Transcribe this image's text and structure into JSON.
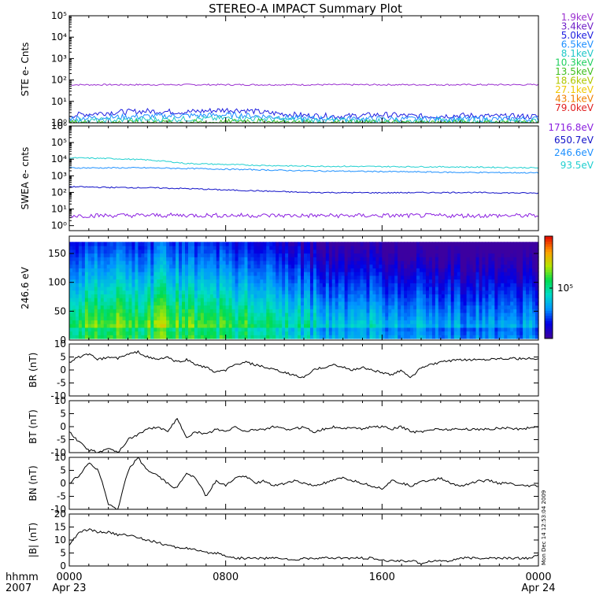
{
  "title": "STEREO-A IMPACT Summary Plot",
  "time_axis": {
    "corner_top": "hhmm",
    "corner_bottom": "2007",
    "ticks": [
      {
        "hhmm": "0000",
        "hours": 0,
        "date": "Apr 23"
      },
      {
        "hhmm": "0800",
        "hours": 8,
        "date": ""
      },
      {
        "hhmm": "1600",
        "hours": 16,
        "date": ""
      },
      {
        "hhmm": "0000",
        "hours": 24,
        "date": "Apr 24"
      }
    ]
  },
  "ste_legend": [
    {
      "label": "1.9keV",
      "color": "#9b30d0"
    },
    {
      "label": "3.4keV",
      "color": "#7020c8"
    },
    {
      "label": "5.0keV",
      "color": "#2020e0"
    },
    {
      "label": "6.5keV",
      "color": "#1e90ff"
    },
    {
      "label": "8.1keV",
      "color": "#20c8c8"
    },
    {
      "label": "10.3keV",
      "color": "#20d060"
    },
    {
      "label": "13.5keV",
      "color": "#40c020"
    },
    {
      "label": "18.6keV",
      "color": "#b0c800"
    },
    {
      "label": "27.1keV",
      "color": "#f0c800"
    },
    {
      "label": "43.1keV",
      "color": "#f08000"
    },
    {
      "label": "79.0keV",
      "color": "#e02020"
    }
  ],
  "swea_legend": [
    {
      "label": "1716.8eV",
      "color": "#8b20e0"
    },
    {
      "label": "650.7eV",
      "color": "#1010c8"
    },
    {
      "label": "246.6eV",
      "color": "#1e90ff"
    },
    {
      "label": "93.5eV",
      "color": "#20d0d0"
    }
  ],
  "colorbar": {
    "tick_label": "10⁵",
    "tick_fraction": 0.5
  },
  "chart_data": [
    {
      "type": "line",
      "ylabel": "STE e- Cnts",
      "yscale": "log",
      "ylim": [
        1,
        100000
      ],
      "yticks": [
        "10⁰",
        "10¹",
        "10²",
        "10³",
        "10⁴",
        "10⁵"
      ],
      "series": [
        {
          "color": "#9b30d0",
          "x": [
            0,
            4,
            8,
            12,
            16,
            20,
            24
          ],
          "y": [
            60,
            60,
            60,
            60,
            60,
            60,
            60
          ]
        },
        {
          "color": "#2020e0",
          "x": [
            0,
            2,
            4,
            6,
            8,
            9,
            10,
            12,
            14,
            16,
            18,
            20,
            22,
            24
          ],
          "y": [
            2.2,
            3,
            3.5,
            3.2,
            4,
            3.8,
            3,
            2.2,
            2,
            2.4,
            2,
            2.2,
            2,
            2
          ]
        },
        {
          "color": "#1e90ff",
          "x": [
            0,
            4,
            8,
            9,
            12,
            16,
            20,
            24
          ],
          "y": [
            1.6,
            2,
            2.3,
            2.2,
            1.6,
            1.5,
            1.5,
            1.5
          ]
        },
        {
          "color": "#20c8c8",
          "x": [
            0,
            4,
            8,
            9,
            12,
            16,
            20,
            24
          ],
          "y": [
            1.2,
            1.4,
            1.6,
            1.6,
            1.3,
            1.2,
            1.2,
            1.2
          ]
        },
        {
          "color": "#40c020",
          "x": [
            0,
            8,
            9,
            10,
            12,
            24
          ],
          "y": [
            1,
            1.05,
            1.3,
            1.1,
            1,
            1
          ]
        }
      ]
    },
    {
      "type": "line",
      "ylabel": "SWEA e- cnts",
      "yscale": "log",
      "ylim": [
        0.5,
        1000000
      ],
      "yticks": [
        "10⁰",
        "10¹",
        "10²",
        "10³",
        "10⁴",
        "10⁵",
        "10⁶"
      ],
      "series": [
        {
          "color": "#20d0d0",
          "x": [
            0,
            2,
            4,
            6,
            8,
            10,
            12,
            16,
            20,
            24
          ],
          "y": [
            12000,
            11000,
            9000,
            5500,
            4800,
            4200,
            3800,
            3600,
            3400,
            3000
          ]
        },
        {
          "color": "#1e90ff",
          "x": [
            0,
            4,
            8,
            12,
            16,
            20,
            24
          ],
          "y": [
            3000,
            3000,
            2500,
            2000,
            1800,
            1600,
            1500
          ]
        },
        {
          "color": "#1010c8",
          "x": [
            0,
            2,
            4,
            6,
            8,
            10,
            12,
            16,
            20,
            24
          ],
          "y": [
            220,
            200,
            190,
            170,
            140,
            120,
            100,
            95,
            100,
            90
          ]
        },
        {
          "color": "#8b20e0",
          "x": [
            0,
            6,
            12,
            18,
            24
          ],
          "y": [
            4,
            4.2,
            4,
            4,
            4
          ]
        }
      ]
    },
    {
      "type": "heatmap",
      "ylabel": "246.6 eV",
      "ylim": [
        0,
        180
      ],
      "yticks": [
        0,
        50,
        100,
        150
      ],
      "ytick_labels": [
        "0",
        "50",
        "100",
        "150"
      ],
      "z_fraction_by_hour": [
        0.3,
        0.45,
        0.5,
        0.48,
        0.45,
        0.48,
        0.45,
        0.44,
        0.4,
        0.42,
        0.38,
        0.35,
        0.3,
        0.22,
        0.2,
        0.22,
        0.2,
        0.18,
        0.2,
        0.16,
        0.15,
        0.14,
        0.13,
        0.14,
        0.15
      ],
      "pitch_top": 170
    },
    {
      "type": "line",
      "ylabel": "BR (nT)",
      "ylim": [
        -10,
        10
      ],
      "yticks": [
        10,
        5,
        0,
        -5,
        -10
      ],
      "ytick_labels": [
        "10",
        "5",
        "0",
        "-5",
        "-10"
      ],
      "series": [
        {
          "color": "#000000",
          "x": [
            0,
            0.5,
            1,
            1.5,
            2,
            2.5,
            3,
            3.5,
            4,
            4.5,
            5,
            5.5,
            6,
            6.5,
            7,
            7.5,
            8,
            8.5,
            9,
            9.5,
            10,
            10.5,
            11,
            11.5,
            12,
            12.5,
            13,
            13.5,
            14,
            14.5,
            15,
            15.5,
            16,
            16.5,
            17,
            17.5,
            18,
            18.5,
            19,
            19.5,
            20,
            20.5,
            21,
            21.5,
            22,
            22.5,
            23,
            23.5,
            24
          ],
          "y": [
            3,
            5,
            6,
            4,
            5,
            4.5,
            6,
            7,
            5,
            4,
            5,
            3,
            4,
            2,
            1,
            -1,
            0,
            2,
            3,
            2,
            1,
            0,
            -1,
            -2,
            -3,
            0,
            1,
            2,
            1,
            0,
            1,
            0,
            -1,
            -2,
            0,
            -3,
            1,
            2,
            3,
            3.5,
            3.8,
            4,
            4,
            4.2,
            4.5,
            4.5,
            4.3,
            4.4,
            4
          ]
        }
      ]
    },
    {
      "type": "line",
      "ylabel": "BT (nT)",
      "ylim": [
        -10,
        10
      ],
      "yticks": [
        10,
        5,
        0,
        -5,
        -10
      ],
      "ytick_labels": [
        "10",
        "5",
        "0",
        "-5",
        "-10"
      ],
      "series": [
        {
          "color": "#000000",
          "x": [
            0,
            0.5,
            1,
            1.5,
            2,
            2.5,
            3,
            3.5,
            4,
            4.5,
            5,
            5.5,
            6,
            6.5,
            7,
            7.5,
            8,
            8.5,
            9,
            9.5,
            10,
            10.5,
            11,
            11.5,
            12,
            12.5,
            13,
            13.5,
            14,
            14.5,
            15,
            15.5,
            16,
            16.5,
            17,
            17.5,
            18,
            18.5,
            19,
            19.5,
            20,
            20.5,
            21,
            21.5,
            22,
            22.5,
            23,
            23.5,
            24
          ],
          "y": [
            -2,
            -6,
            -9,
            -10,
            -8,
            -10,
            -5,
            -3,
            -1,
            0,
            -2,
            3,
            -4,
            -2,
            -3,
            -1,
            -2,
            0,
            -2,
            -1,
            -1,
            0,
            -1,
            -1,
            0,
            -2,
            -1,
            0,
            -1,
            0,
            -1,
            0,
            0,
            -1,
            0,
            -2,
            -2,
            -1,
            -1,
            -1,
            -1,
            -1,
            -1,
            -1,
            -0.5,
            -0.5,
            -1,
            -0.5,
            0
          ]
        }
      ]
    },
    {
      "type": "line",
      "ylabel": "BN (nT)",
      "ylim": [
        -10,
        10
      ],
      "yticks": [
        10,
        5,
        0,
        -5,
        -10
      ],
      "ytick_labels": [
        "10",
        "5",
        "0",
        "-5",
        "-10"
      ],
      "series": [
        {
          "color": "#000000",
          "x": [
            0,
            0.5,
            1,
            1.5,
            2,
            2.5,
            3,
            3.5,
            4,
            4.5,
            5,
            5.5,
            6,
            6.5,
            7,
            7.5,
            8,
            8.5,
            9,
            9.5,
            10,
            10.5,
            11,
            11.5,
            12,
            12.5,
            13,
            13.5,
            14,
            14.5,
            15,
            15.5,
            16,
            16.5,
            17,
            17.5,
            18,
            18.5,
            19,
            19.5,
            20,
            20.5,
            21,
            21.5,
            22,
            22.5,
            23,
            23.5,
            24
          ],
          "y": [
            0,
            3,
            8,
            5,
            -8,
            -10,
            5,
            10,
            5,
            3,
            0,
            -2,
            4,
            2,
            -5,
            1,
            -1,
            2,
            3,
            0,
            1,
            -1,
            0,
            1,
            0,
            -1,
            0,
            1,
            2,
            1,
            0,
            -1,
            -2,
            1,
            0,
            -1,
            1,
            1,
            2,
            0,
            -1,
            0,
            1,
            1,
            0,
            0,
            -1,
            -1,
            -1
          ]
        }
      ]
    },
    {
      "type": "line",
      "ylabel": "|B| (nT)",
      "ylim": [
        0,
        20
      ],
      "yticks": [
        20,
        15,
        10,
        5,
        0
      ],
      "ytick_labels": [
        "20",
        "15",
        "10",
        "5",
        "0"
      ],
      "series": [
        {
          "color": "#000000",
          "x": [
            0,
            0.5,
            1,
            1.5,
            2,
            2.5,
            3,
            3.5,
            4,
            4.5,
            5,
            5.5,
            6,
            6.5,
            7,
            7.5,
            8,
            8.5,
            9,
            9.5,
            10,
            10.5,
            11,
            11.5,
            12,
            12.5,
            13,
            13.5,
            14,
            14.5,
            15,
            15.5,
            16,
            16.5,
            17,
            17.5,
            18,
            18.5,
            19,
            19.5,
            20,
            20.5,
            21,
            21.5,
            22,
            22.5,
            23,
            23.5,
            24
          ],
          "y": [
            8,
            13,
            14,
            13,
            13,
            12,
            12,
            11,
            10,
            9,
            8,
            7,
            7,
            6,
            5,
            5,
            4,
            3,
            3,
            3,
            3,
            3,
            3,
            2,
            3,
            3,
            3,
            3,
            3,
            3,
            3,
            3,
            2,
            2,
            2,
            2,
            1,
            2,
            2,
            2,
            3,
            3,
            3,
            3,
            3,
            3,
            3,
            3,
            4
          ]
        }
      ]
    }
  ],
  "side_stamp": "Mon Dec 14 12:53:04 2009"
}
